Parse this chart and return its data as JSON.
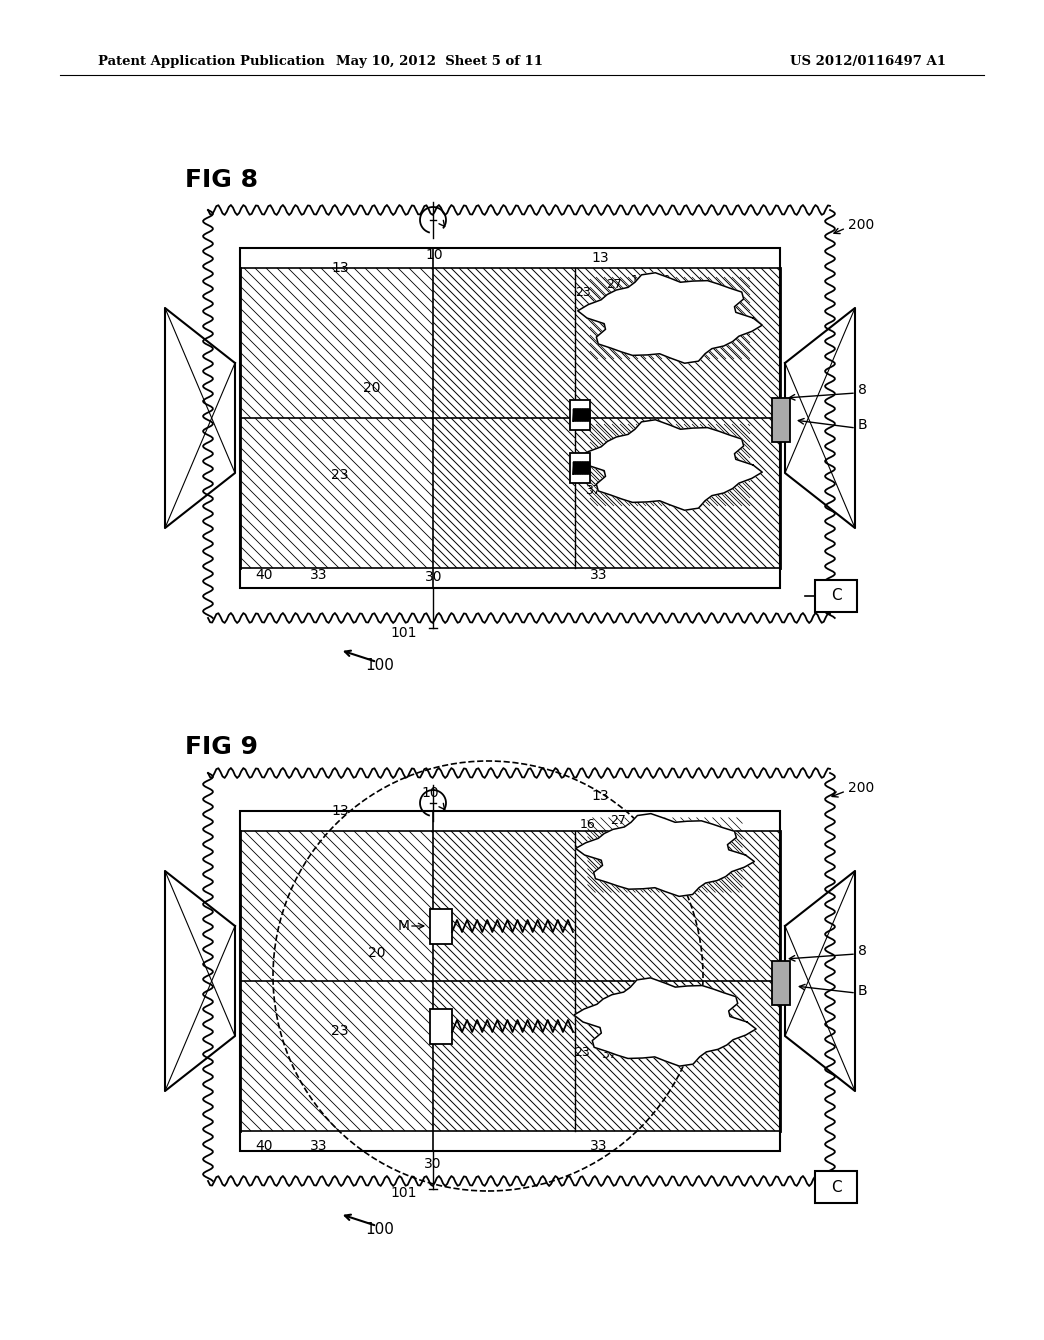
{
  "bg_color": "#ffffff",
  "header_left": "Patent Application Publication",
  "header_center": "May 10, 2012  Sheet 5 of 11",
  "header_right": "US 2012/0116497 A1",
  "fig8_label": "FIG 8",
  "fig9_label": "FIG 9"
}
